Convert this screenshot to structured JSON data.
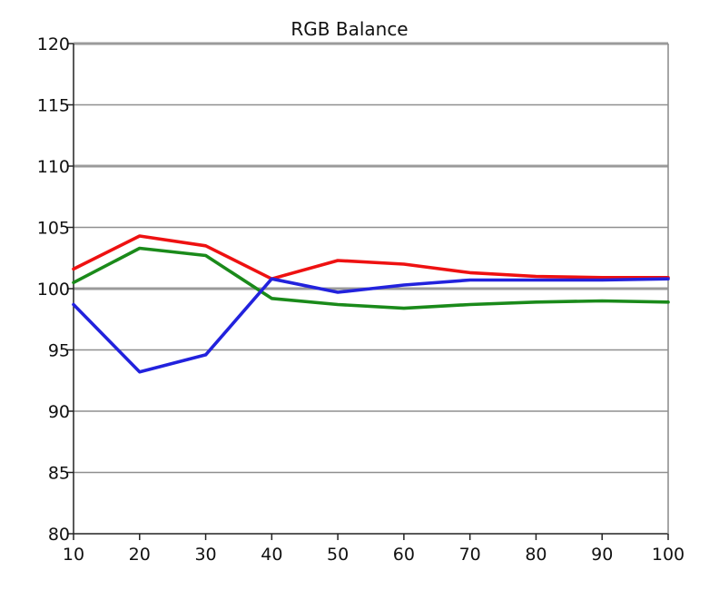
{
  "chart_data": {
    "type": "line",
    "title": "RGB Balance",
    "xlabel": "",
    "ylabel": "",
    "x": [
      10,
      20,
      30,
      40,
      50,
      60,
      70,
      80,
      90,
      100
    ],
    "xlim": [
      10,
      100
    ],
    "ylim": [
      80,
      120
    ],
    "xticks": [
      "10",
      "20",
      "30",
      "40",
      "50",
      "60",
      "70",
      "80",
      "90",
      "100"
    ],
    "yticks": [
      "80",
      "85",
      "90",
      "95",
      "100",
      "105",
      "110",
      "115",
      "120"
    ],
    "heavy_gridlines": [
      100,
      110,
      120
    ],
    "grid": "horizontal",
    "legend": "none",
    "series": [
      {
        "color": "#ee1111",
        "values": [
          101.6,
          104.3,
          103.5,
          100.8,
          102.3,
          102.0,
          101.3,
          101.0,
          100.9,
          100.9
        ]
      },
      {
        "color": "#1a8a1a",
        "values": [
          100.5,
          103.3,
          102.7,
          99.2,
          98.7,
          98.4,
          98.7,
          98.9,
          99.0,
          98.9
        ]
      },
      {
        "color": "#2222dd",
        "values": [
          98.7,
          93.2,
          94.6,
          100.8,
          99.7,
          100.3,
          100.7,
          100.7,
          100.7,
          100.8
        ]
      }
    ]
  }
}
